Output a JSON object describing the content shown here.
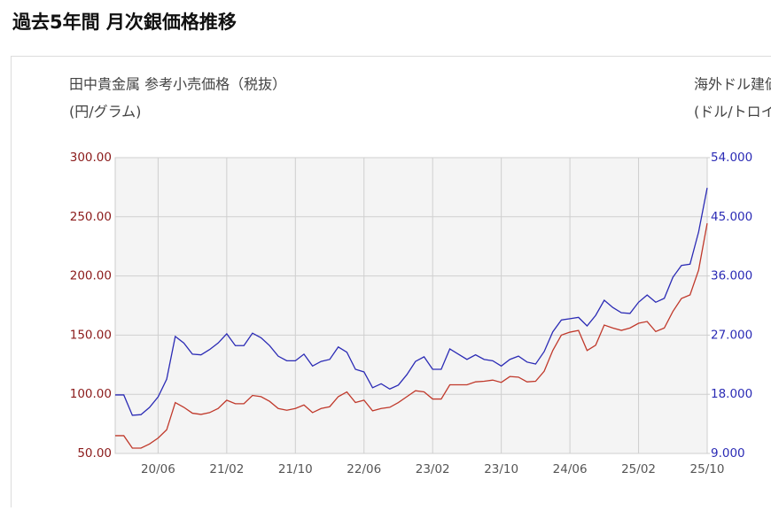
{
  "chart_data": {
    "type": "line",
    "title": "過去5年間 月次銀価格推移",
    "ylabel": [
      "田中貴金属 参考小売価格（税抜）",
      "(円/グラム)"
    ],
    "y2label": [
      "海外ドル建価格",
      "(ドル/トロイオンス)"
    ],
    "categories": [
      null,
      null,
      null,
      null,
      null,
      "20/06",
      null,
      null,
      null,
      null,
      null,
      null,
      null,
      "21/02",
      null,
      null,
      null,
      null,
      null,
      null,
      null,
      "21/10",
      null,
      null,
      null,
      null,
      null,
      null,
      null,
      "22/06",
      null,
      null,
      null,
      null,
      null,
      null,
      null,
      "23/02",
      null,
      null,
      null,
      null,
      null,
      null,
      null,
      "23/10",
      null,
      null,
      null,
      null,
      null,
      null,
      null,
      "24/06",
      null,
      null,
      null,
      null,
      null,
      null,
      null,
      "25/02",
      null,
      null,
      null,
      null,
      null,
      null,
      null,
      "25/10"
    ],
    "series": [
      {
        "color": "#c0392b",
        "values": [
          65,
          65,
          54.5,
          54.5,
          58,
          63,
          70,
          93,
          89,
          84,
          83,
          84.5,
          88,
          95,
          92,
          92,
          99,
          98,
          94,
          88,
          86.5,
          88,
          91,
          84.5,
          88,
          89.5,
          98,
          102,
          93,
          95,
          86,
          88,
          89,
          93,
          98,
          103,
          102,
          96,
          96,
          108,
          108,
          108,
          110.5,
          111,
          112,
          110,
          115,
          114.5,
          110.5,
          111,
          119.5,
          137,
          150,
          152.5,
          154,
          137,
          141.5,
          158.5,
          156,
          154,
          156,
          160,
          161.5,
          153,
          156,
          170,
          181,
          184,
          205,
          244.5
        ]
      },
      {
        "color": "#2b2bb5",
        "axis": "y2",
        "values": [
          17.9,
          17.9,
          14.8,
          14.9,
          16.0,
          17.6,
          20.3,
          26.8,
          25.8,
          24.1,
          24.0,
          24.8,
          25.8,
          27.2,
          25.4,
          25.4,
          27.3,
          26.6,
          25.4,
          23.8,
          23.1,
          23.1,
          24.1,
          22.3,
          23.0,
          23.3,
          25.2,
          24.4,
          21.8,
          21.4,
          19.0,
          19.6,
          18.8,
          19.4,
          21.0,
          23.0,
          23.7,
          21.8,
          21.8,
          24.9,
          24.1,
          23.3,
          24.0,
          23.3,
          23.1,
          22.3,
          23.3,
          23.8,
          22.9,
          22.6,
          24.5,
          27.5,
          29.3,
          29.5,
          29.7,
          28.4,
          30.0,
          32.3,
          31.2,
          30.4,
          30.3,
          32.0,
          33.1,
          32.0,
          32.6,
          35.8,
          37.6,
          37.8,
          42.7,
          49.4
        ]
      }
    ],
    "ylim": [
      50,
      300
    ],
    "yticks": [
      {
        "value": 50,
        "label": "50.00"
      },
      {
        "value": 100,
        "label": "100.00"
      },
      {
        "value": 150,
        "label": "150.00"
      },
      {
        "value": 200,
        "label": "200.00"
      },
      {
        "value": 250,
        "label": "250.00"
      },
      {
        "value": 300,
        "label": "300.00"
      }
    ],
    "y2lim": [
      9,
      54
    ],
    "y2ticks": [
      {
        "value": 9,
        "label": "9.000"
      },
      {
        "value": 18,
        "label": "18.000"
      },
      {
        "value": 27,
        "label": "27.000"
      },
      {
        "value": 36,
        "label": "36.000"
      },
      {
        "value": 45,
        "label": "45.000"
      },
      {
        "value": 54,
        "label": "54.000"
      }
    ],
    "grid": true
  }
}
